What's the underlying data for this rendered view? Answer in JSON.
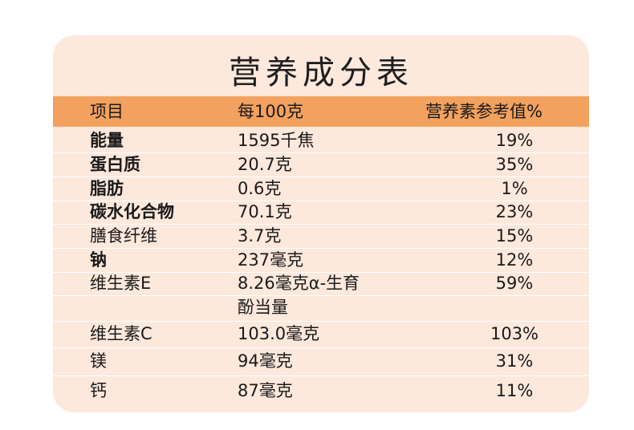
{
  "title": "营养成分表",
  "header": {
    "item": "项目",
    "per100g": "每100克",
    "nrv": "营养素参考值%"
  },
  "rows": [
    {
      "name": "能量",
      "amount": "1595千焦",
      "nrv": "19%",
      "bold": true
    },
    {
      "name": "蛋白质",
      "amount": "20.7克",
      "nrv": "35%",
      "bold": true
    },
    {
      "name": "脂肪",
      "amount": "0.6克",
      "nrv": "1%",
      "bold": true
    },
    {
      "name": "碳水化合物",
      "amount": "70.1克",
      "nrv": "23%",
      "bold": true
    },
    {
      "name": "膳食纤维",
      "amount": "3.7克",
      "nrv": "15%",
      "bold": false
    },
    {
      "name": "钠",
      "amount": "237毫克",
      "nrv": "12%",
      "bold": true
    },
    {
      "name": "维生素E",
      "amount": "8.26毫克α-生育",
      "amount_line2": "酚当量",
      "nrv": "59%",
      "bold": false
    },
    {
      "name": "维生素C",
      "amount": "103.0毫克",
      "nrv": "103%",
      "bold": false
    },
    {
      "name": "镁",
      "amount": "94毫克",
      "nrv": "31%",
      "bold": false
    },
    {
      "name": "钙",
      "amount": "87毫克",
      "nrv": "11%",
      "bold": false
    }
  ]
}
